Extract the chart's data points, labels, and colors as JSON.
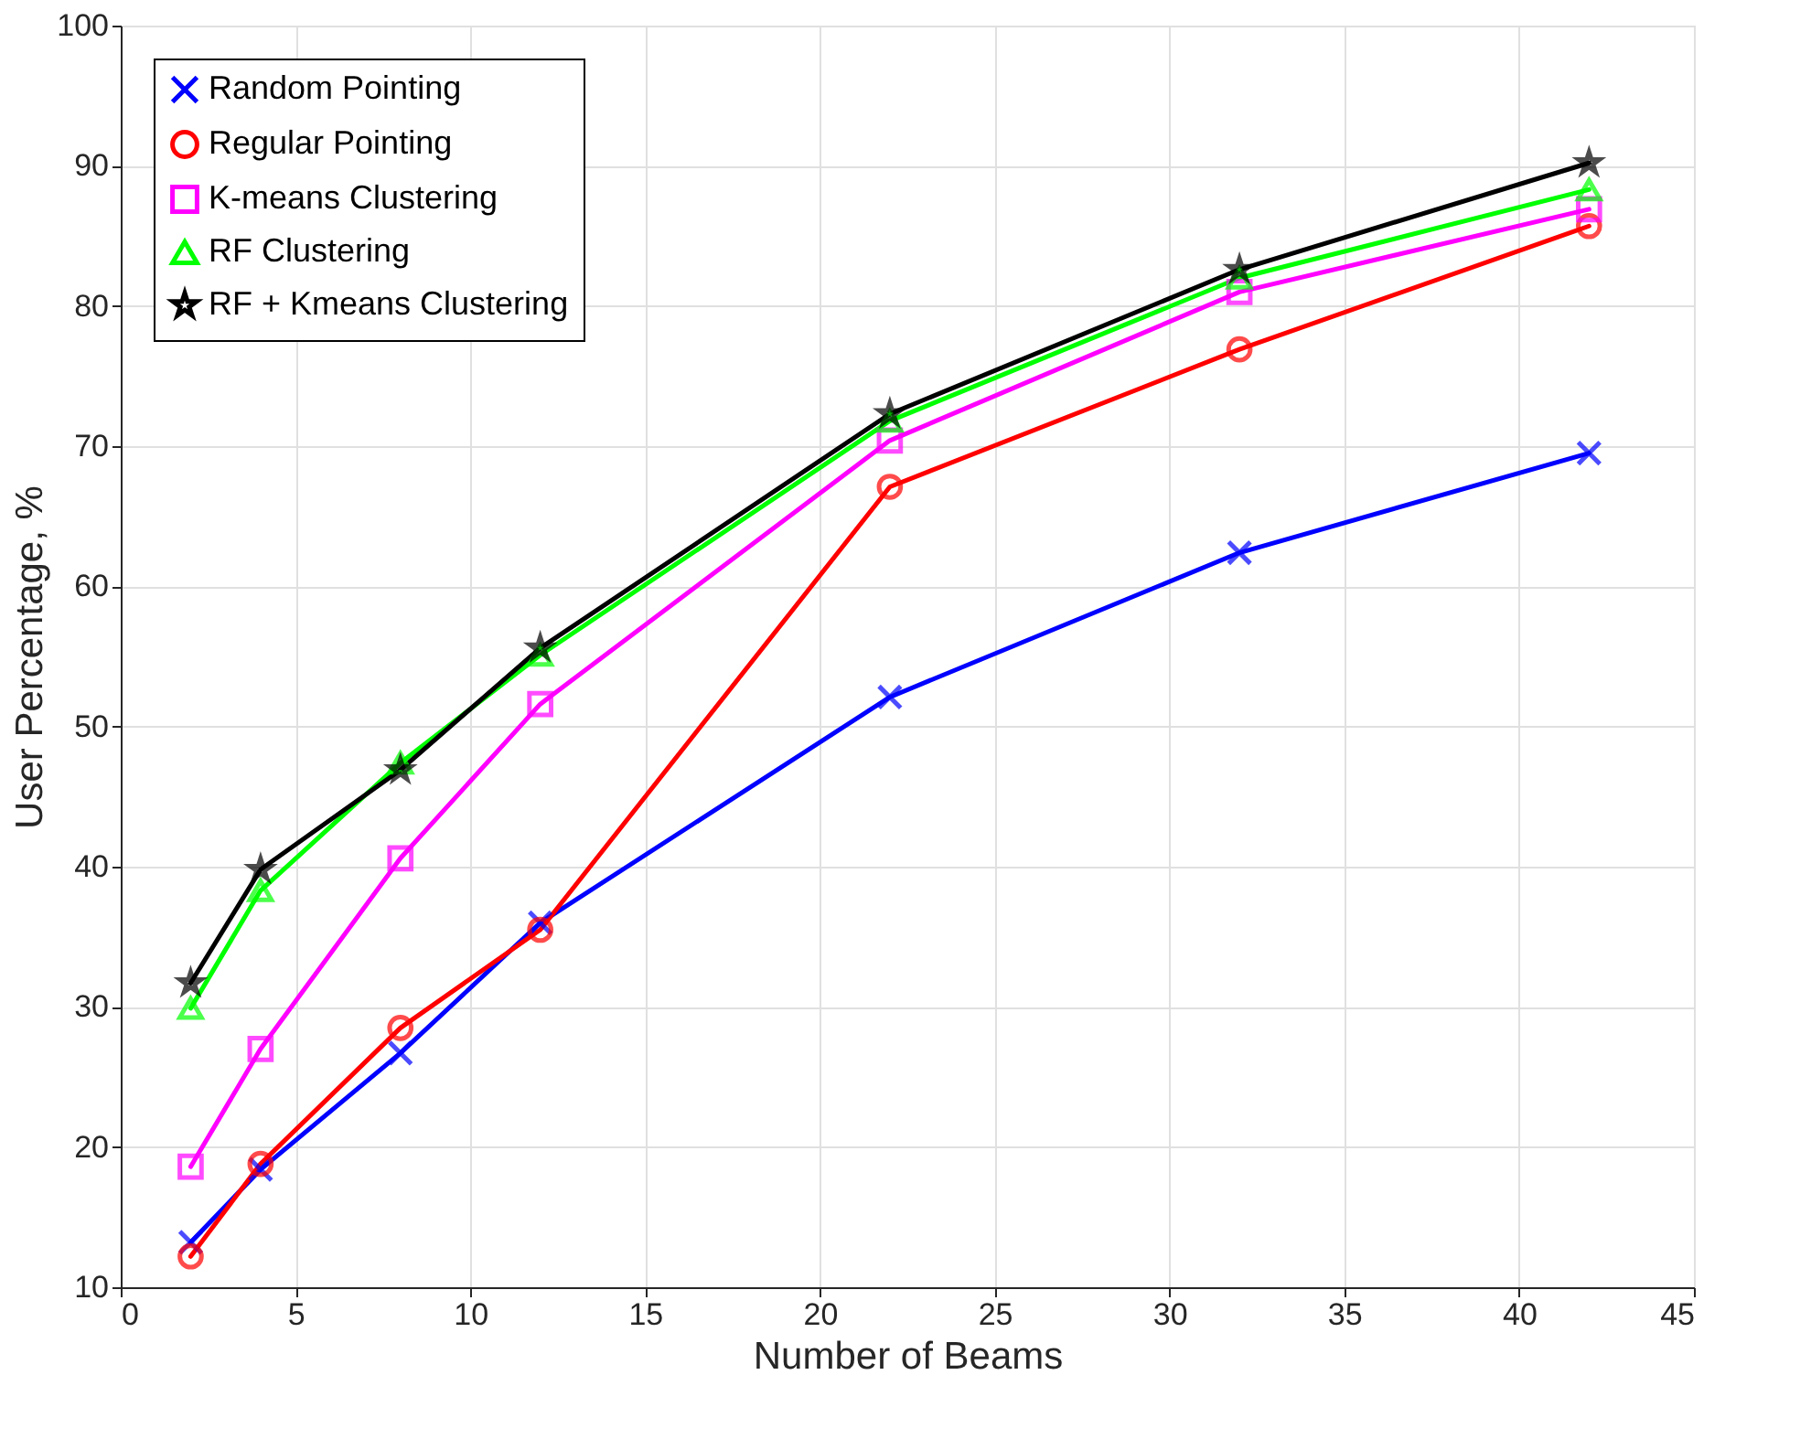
{
  "chart_data": {
    "type": "line",
    "xlabel": "Number of Beams",
    "ylabel": "User Percentage, %",
    "x": [
      2,
      4,
      8,
      12,
      22,
      32,
      42
    ],
    "series": [
      {
        "name": "Random Pointing",
        "color": "#0000ff",
        "marker": "cross",
        "values": [
          13.2,
          18.4,
          26.7,
          36.0,
          52.1,
          62.4,
          69.5
        ]
      },
      {
        "name": "Regular Pointing",
        "color": "#ff0000",
        "marker": "circle",
        "values": [
          12.2,
          18.8,
          28.5,
          35.5,
          67.1,
          76.9,
          85.7
        ]
      },
      {
        "name": "K-means Clustering",
        "color": "#ff00ff",
        "marker": "square",
        "values": [
          18.6,
          27.0,
          40.6,
          51.6,
          70.4,
          81.0,
          86.9
        ]
      },
      {
        "name": "RF Clustering",
        "color": "#00ff00",
        "marker": "triangle",
        "values": [
          29.9,
          38.3,
          47.4,
          55.1,
          71.8,
          82.0,
          88.3
        ]
      },
      {
        "name": "RF + Kmeans Clustering",
        "color": "#000000",
        "marker": "star",
        "values": [
          31.7,
          39.8,
          46.9,
          55.6,
          72.3,
          82.6,
          90.2
        ]
      }
    ],
    "xlim": [
      0,
      45
    ],
    "xticks": [
      0,
      5,
      10,
      15,
      20,
      25,
      30,
      35,
      40,
      45
    ],
    "ylim": [
      10,
      100
    ],
    "yticks": [
      10,
      20,
      30,
      40,
      50,
      60,
      70,
      80,
      90,
      100
    ],
    "grid": true,
    "legend": "top left",
    "line_style": "solid"
  }
}
